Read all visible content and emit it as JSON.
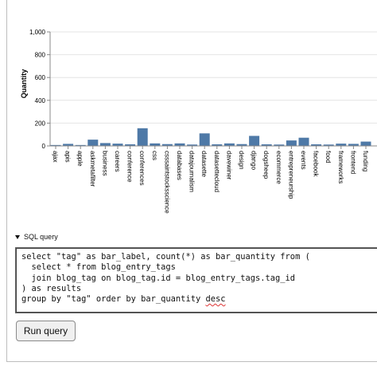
{
  "chart_data": {
    "type": "bar",
    "title": "",
    "xlabel": "",
    "ylabel": "Quantity",
    "ylim": [
      0,
      1000
    ],
    "yticks": [
      "0",
      "200",
      "400",
      "600",
      "800",
      "1,000"
    ],
    "grid": true,
    "bar_color": "#4e79a7",
    "categories": [
      "ajax",
      "apis",
      "apple",
      "askmetafilter",
      "business",
      "careers",
      "conference",
      "conferences",
      "css",
      "csssaintstocksscience",
      "databases",
      "datajournalism",
      "datasette",
      "datasettecloud",
      "davewiner",
      "design",
      "django",
      "dogsheep",
      "ecommerce",
      "entrepreneurship",
      "events",
      "facebook",
      "food",
      "frameworks",
      "frontend",
      "funding"
    ],
    "values": [
      8,
      18,
      8,
      55,
      25,
      20,
      14,
      155,
      22,
      16,
      22,
      12,
      110,
      14,
      22,
      16,
      88,
      14,
      12,
      48,
      72,
      14,
      12,
      20,
      18,
      38
    ]
  },
  "sql_toggle": {
    "label": "SQL query"
  },
  "sql": {
    "line1": "select \"tag\" as bar_label, count(*) as bar_quantity from (",
    "line2": "  select * from blog_entry_tags",
    "line3": "  join blog_tag on blog_tag.id = blog_entry_tags.tag_id",
    "line4": ") as results",
    "line5_a": "group by \"tag\" order by bar_quantity ",
    "line5_b": "desc"
  },
  "run_button": {
    "label": "Run query"
  }
}
